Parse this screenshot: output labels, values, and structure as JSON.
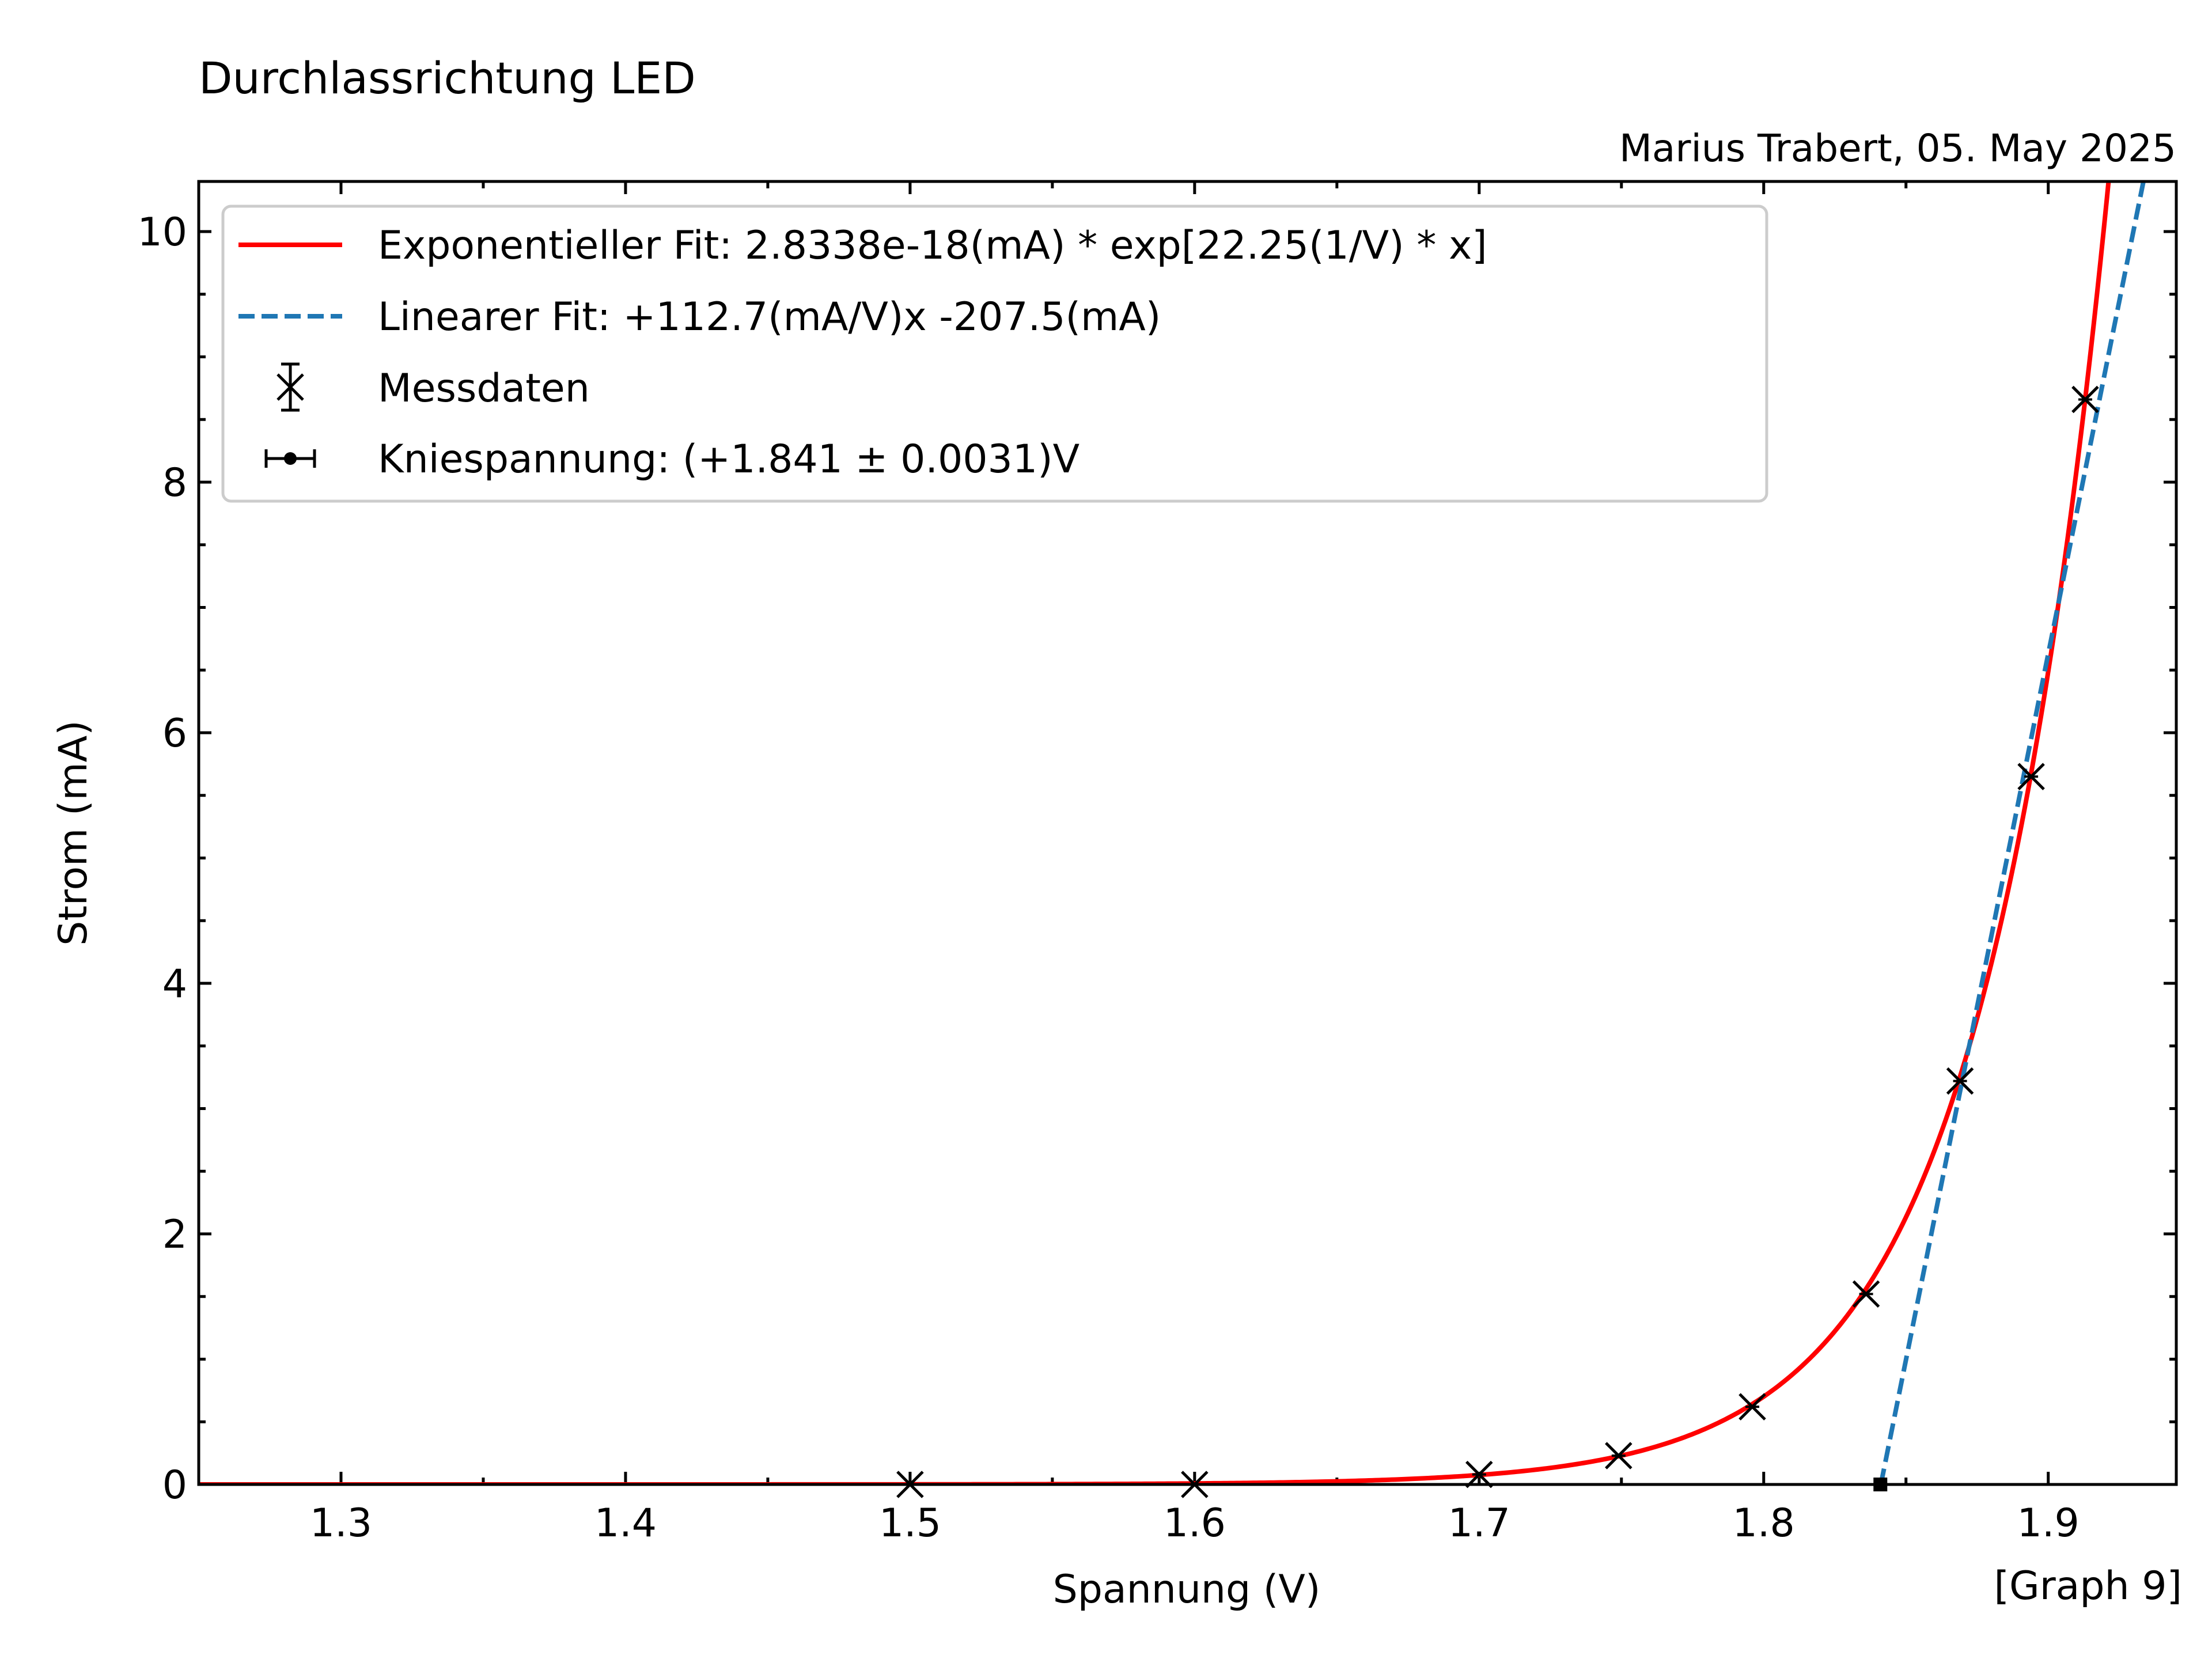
{
  "chart_data": {
    "type": "scatter",
    "title": "Durchlassrichtung LED",
    "subtitle": "Marius Trabert, 05. May 2025",
    "xlabel": "Spannung (V)",
    "ylabel": "Strom (mA)",
    "corner_note": "[Graph 9]",
    "xlim": [
      1.25,
      1.945
    ],
    "ylim": [
      0,
      10.4
    ],
    "x_ticks": [
      1.3,
      1.4,
      1.5,
      1.6,
      1.7,
      1.8,
      1.9
    ],
    "x_tick_labels": [
      "1.3",
      "1.4",
      "1.5",
      "1.6",
      "1.7",
      "1.8",
      "1.9"
    ],
    "y_ticks": [
      0,
      2,
      4,
      6,
      8,
      10
    ],
    "y_tick_labels": [
      "0",
      "2",
      "4",
      "6",
      "8",
      "10"
    ],
    "grid": false,
    "legend_position": "top-left",
    "legend": [
      {
        "label": "Exponentieller Fit: 2.8338e-18(mA) * exp[22.25(1/V) * x]",
        "kind": "solid-line",
        "color": "#ff0000"
      },
      {
        "label": "Linearer Fit:  +112.7(mA/V)x -207.5(mA)",
        "kind": "dashed-line",
        "color": "#1f77b4"
      },
      {
        "label": "Messdaten",
        "kind": "x-marker-errorbar",
        "color": "#000000"
      },
      {
        "label": "Kniespannung: (+1.841 ± 0.0031)V",
        "kind": "dot-marker-errorbar",
        "color": "#000000"
      }
    ],
    "series": [
      {
        "name": "Messdaten",
        "marker": "x",
        "color": "#000000",
        "x": [
          1.5,
          1.6,
          1.7,
          1.749,
          1.796,
          1.836,
          1.869,
          1.894,
          1.913
        ],
        "y": [
          0.0,
          0.0,
          0.08,
          0.23,
          0.62,
          1.52,
          3.22,
          5.65,
          8.66
        ]
      },
      {
        "name": "Exponentieller Fit",
        "kind": "exp-fit",
        "color": "#ff0000",
        "a": 2.8338e-18,
        "b": 22.25
      },
      {
        "name": "Linearer Fit",
        "kind": "linear-fit",
        "color": "#1f77b4",
        "slope": 112.7,
        "intercept": -207.5
      },
      {
        "name": "Kniespannung",
        "marker": "dot",
        "color": "#000000",
        "x": [
          1.841
        ],
        "y": [
          0
        ],
        "x_error": 0.0031
      }
    ]
  }
}
